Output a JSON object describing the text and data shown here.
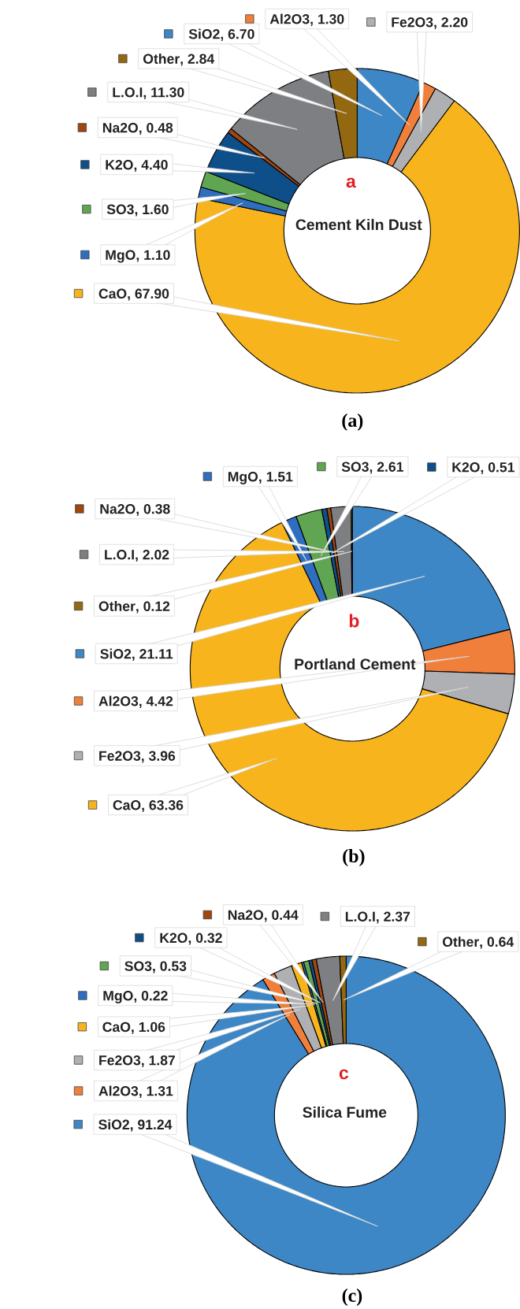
{
  "chart_data": [
    {
      "type": "donut",
      "title": "Cement Kiln Dust",
      "categories": [
        "SiO2",
        "Al2O3",
        "Fe2O3",
        "CaO",
        "MgO",
        "SO3",
        "K2O",
        "Na2O",
        "L.O.I",
        "Other"
      ],
      "values": [
        6.7,
        1.3,
        2.2,
        67.9,
        1.1,
        1.6,
        4.4,
        0.48,
        11.3,
        2.84
      ],
      "value_labels": [
        ", 6.70",
        ", 1.30",
        ", 2.20",
        ", 67.90",
        ", 1.10",
        ", 1.60",
        ", 4.40",
        ", 0.48",
        ", 11.30",
        ", 2.84"
      ],
      "colors": [
        "#3d87c6",
        "#f07f3c",
        "#afb0b3",
        "#f8b41c",
        "#2f6ebf",
        "#60a552",
        "#0e4f8a",
        "#a0460f",
        "#7e7f82",
        "#936811"
      ],
      "legend": "left",
      "annotations": [
        "a",
        "(a)"
      ]
    },
    {
      "type": "donut",
      "title": "Portland Cement",
      "categories": [
        "SiO2",
        "Al2O3",
        "Fe2O3",
        "CaO",
        "MgO",
        "SO3",
        "K2O",
        "Na2O",
        "L.O.I",
        "Other"
      ],
      "values": [
        21.11,
        4.42,
        3.96,
        63.36,
        1.51,
        2.61,
        0.51,
        0.38,
        2.02,
        0.12
      ],
      "value_labels": [
        ", 21.11",
        ", 4.42",
        ", 3.96",
        ", 63.36",
        ", 1.51",
        ", 2.61",
        ", 0.51",
        ", 0.38",
        ", 2.02",
        ", 0.12"
      ],
      "colors": [
        "#3d87c6",
        "#f07f3c",
        "#afb0b3",
        "#f8b41c",
        "#2f6ebf",
        "#60a552",
        "#0e4f8a",
        "#a0460f",
        "#7e7f82",
        "#936811"
      ],
      "legend": "left",
      "annotations": [
        "b",
        "(b)"
      ]
    },
    {
      "type": "donut",
      "title": "Silica Fume",
      "categories": [
        "SiO2",
        "Al2O3",
        "Fe2O3",
        "CaO",
        "MgO",
        "SO3",
        "K2O",
        "Na2O",
        "L.O.I",
        "Other"
      ],
      "values": [
        91.24,
        1.31,
        1.87,
        1.06,
        0.22,
        0.53,
        0.32,
        0.44,
        2.37,
        0.64
      ],
      "value_labels": [
        ", 91.24",
        ", 1.31",
        ", 1.87",
        ", 1.06",
        ", 0.22",
        ", 0.53",
        ", 0.32",
        ", 0.44",
        ", 2.37",
        ", 0.64"
      ],
      "colors": [
        "#3d87c6",
        "#f07f3c",
        "#afb0b3",
        "#f8b41c",
        "#2f6ebf",
        "#60a552",
        "#0e4f8a",
        "#a0460f",
        "#7e7f82",
        "#936811"
      ],
      "legend": "left",
      "annotations": [
        "c",
        "(c)"
      ]
    }
  ]
}
